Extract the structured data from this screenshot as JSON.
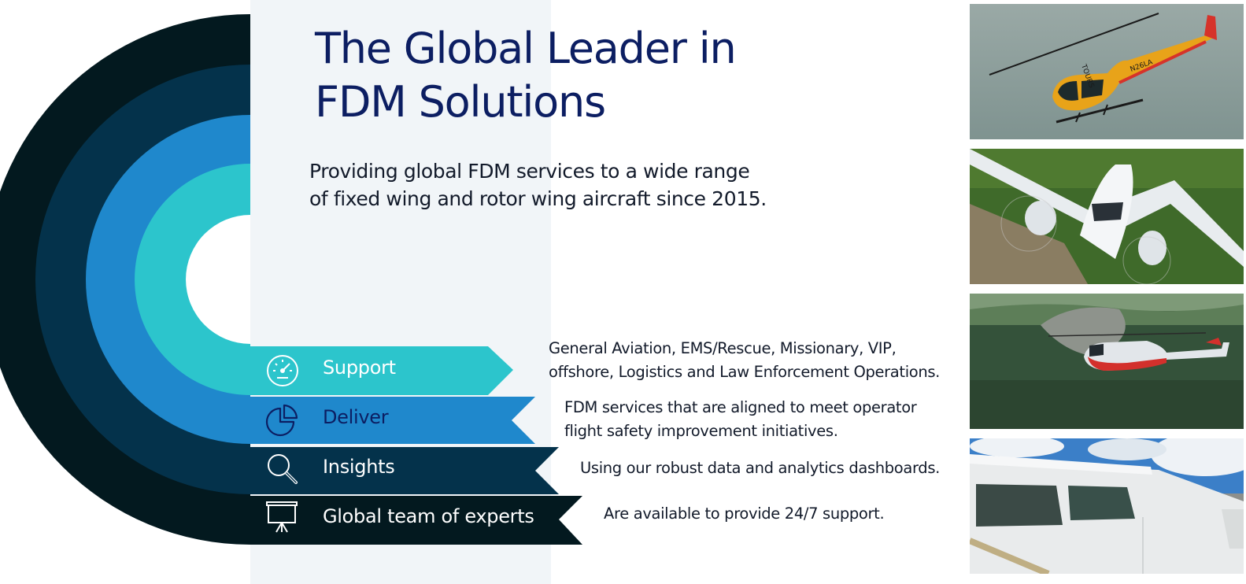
{
  "heading": {
    "title_line1": "The Global Leader in",
    "title_line2": "FDM Solutions",
    "subtitle_line1": "Providing global FDM services to a wide range",
    "subtitle_line2": "of fixed wing and rotor wing aircraft since 2015."
  },
  "bands": [
    {
      "label": "Support",
      "icon": "gauge-icon",
      "color": "#2cc5cc",
      "desc_line1": "General Aviation, EMS/Rescue, Missionary, VIP,",
      "desc_line2": "offshore, Logistics and Law Enforcement Operations."
    },
    {
      "label": "Deliver",
      "icon": "pie-chart-icon",
      "color": "#1f88cc",
      "desc_line1": "FDM services that are aligned to meet operator",
      "desc_line2": "flight safety improvement initiatives."
    },
    {
      "label": "Insights",
      "icon": "magnifier-icon",
      "color": "#04324b",
      "desc_line1": "Using our robust data and analytics dashboards."
    },
    {
      "label": "Global team of experts",
      "icon": "presentation-board-icon",
      "color": "#03191f",
      "desc_line1": "Are available to provide 24/7 support."
    }
  ],
  "photos": {
    "photo1_tail_number": "N26LA",
    "photo1_tail_text": "TOURS"
  }
}
